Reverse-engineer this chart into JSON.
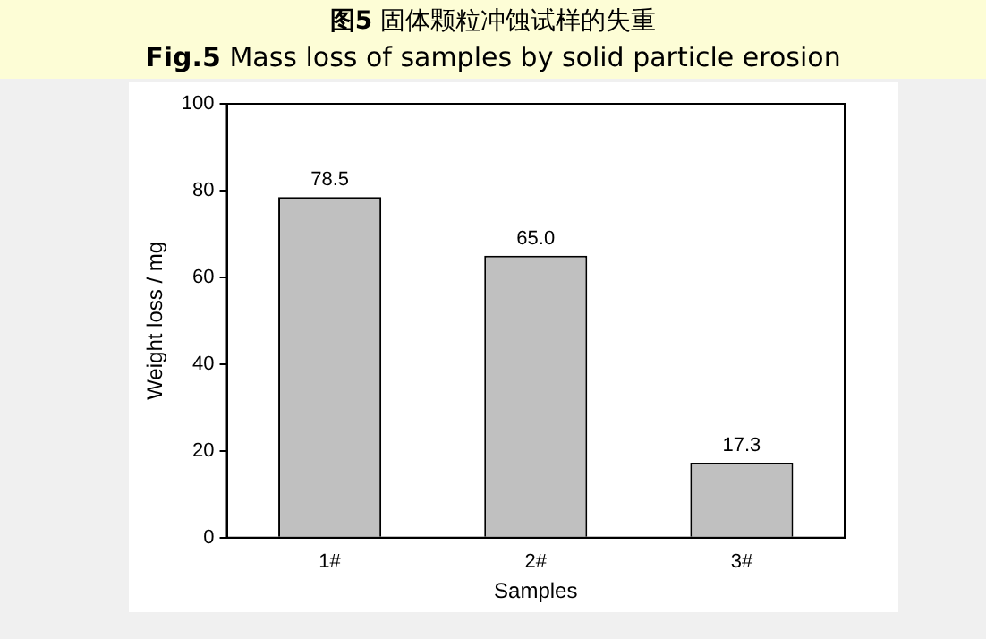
{
  "chart_data": {
    "type": "bar",
    "title": "图5 固体颗粒冲蚀试样的失重",
    "subtitle": "Fig.5 Mass loss of samples by solid particle erosion",
    "xlabel": "Samples",
    "ylabel": "Weight loss / mg",
    "categories": [
      "1#",
      "2#",
      "3#"
    ],
    "values": [
      78.5,
      65.0,
      17.3
    ],
    "value_labels": [
      "78.5",
      "65.0",
      "17.3"
    ],
    "color": "#c0c0c0",
    "ylim": [
      0,
      100
    ],
    "yticks": [
      0,
      20,
      40,
      60,
      80,
      100
    ],
    "grid": false,
    "legend": false
  }
}
